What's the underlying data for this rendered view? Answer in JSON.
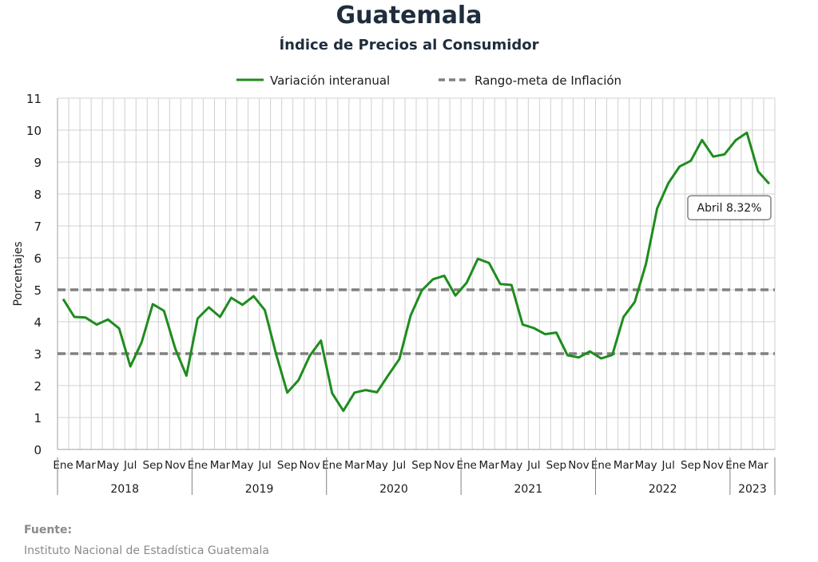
{
  "title": "Guatemala",
  "subtitle": "Índice de Precios al Consumidor",
  "source": {
    "label": "Fuente:",
    "text": "Instituto Nacional de Estadística Guatemala"
  },
  "chart_data": {
    "type": "line",
    "ylabel": "Porcentajes",
    "ylim": [
      0,
      11
    ],
    "yticks": [
      0,
      1,
      2,
      3,
      4,
      5,
      6,
      7,
      8,
      9,
      10,
      11
    ],
    "grid": true,
    "legend_position": "top",
    "month_labels": [
      "Ene",
      "Mar",
      "May",
      "Jul",
      "Sep",
      "Nov"
    ],
    "years": [
      "2018",
      "2019",
      "2020",
      "2021",
      "2022",
      "2023"
    ],
    "x_start": "2018-01",
    "x_end": "2023-04",
    "series": [
      {
        "name": "Variación interanual",
        "color": "#1e8c1e",
        "style": "solid",
        "values": [
          4.71,
          4.15,
          4.13,
          3.91,
          4.07,
          3.79,
          2.6,
          3.35,
          4.55,
          4.34,
          3.16,
          2.31,
          4.1,
          4.45,
          4.15,
          4.75,
          4.53,
          4.8,
          4.36,
          2.99,
          1.78,
          2.17,
          2.93,
          3.41,
          1.76,
          1.21,
          1.78,
          1.86,
          1.79,
          2.32,
          2.83,
          4.19,
          4.98,
          5.33,
          5.44,
          4.82,
          5.22,
          5.97,
          5.84,
          5.18,
          5.15,
          3.91,
          3.8,
          3.61,
          3.66,
          2.95,
          2.88,
          3.07,
          2.85,
          2.96,
          4.15,
          4.62,
          5.81,
          7.55,
          8.34,
          8.86,
          9.04,
          9.69,
          9.17,
          9.24,
          9.68,
          9.92,
          8.71,
          8.32
        ]
      },
      {
        "name": "Rango-meta de Inflación",
        "color": "#808080",
        "style": "dashed",
        "values": [
          3,
          5
        ]
      }
    ],
    "annotation": "Abril 8.32%"
  }
}
